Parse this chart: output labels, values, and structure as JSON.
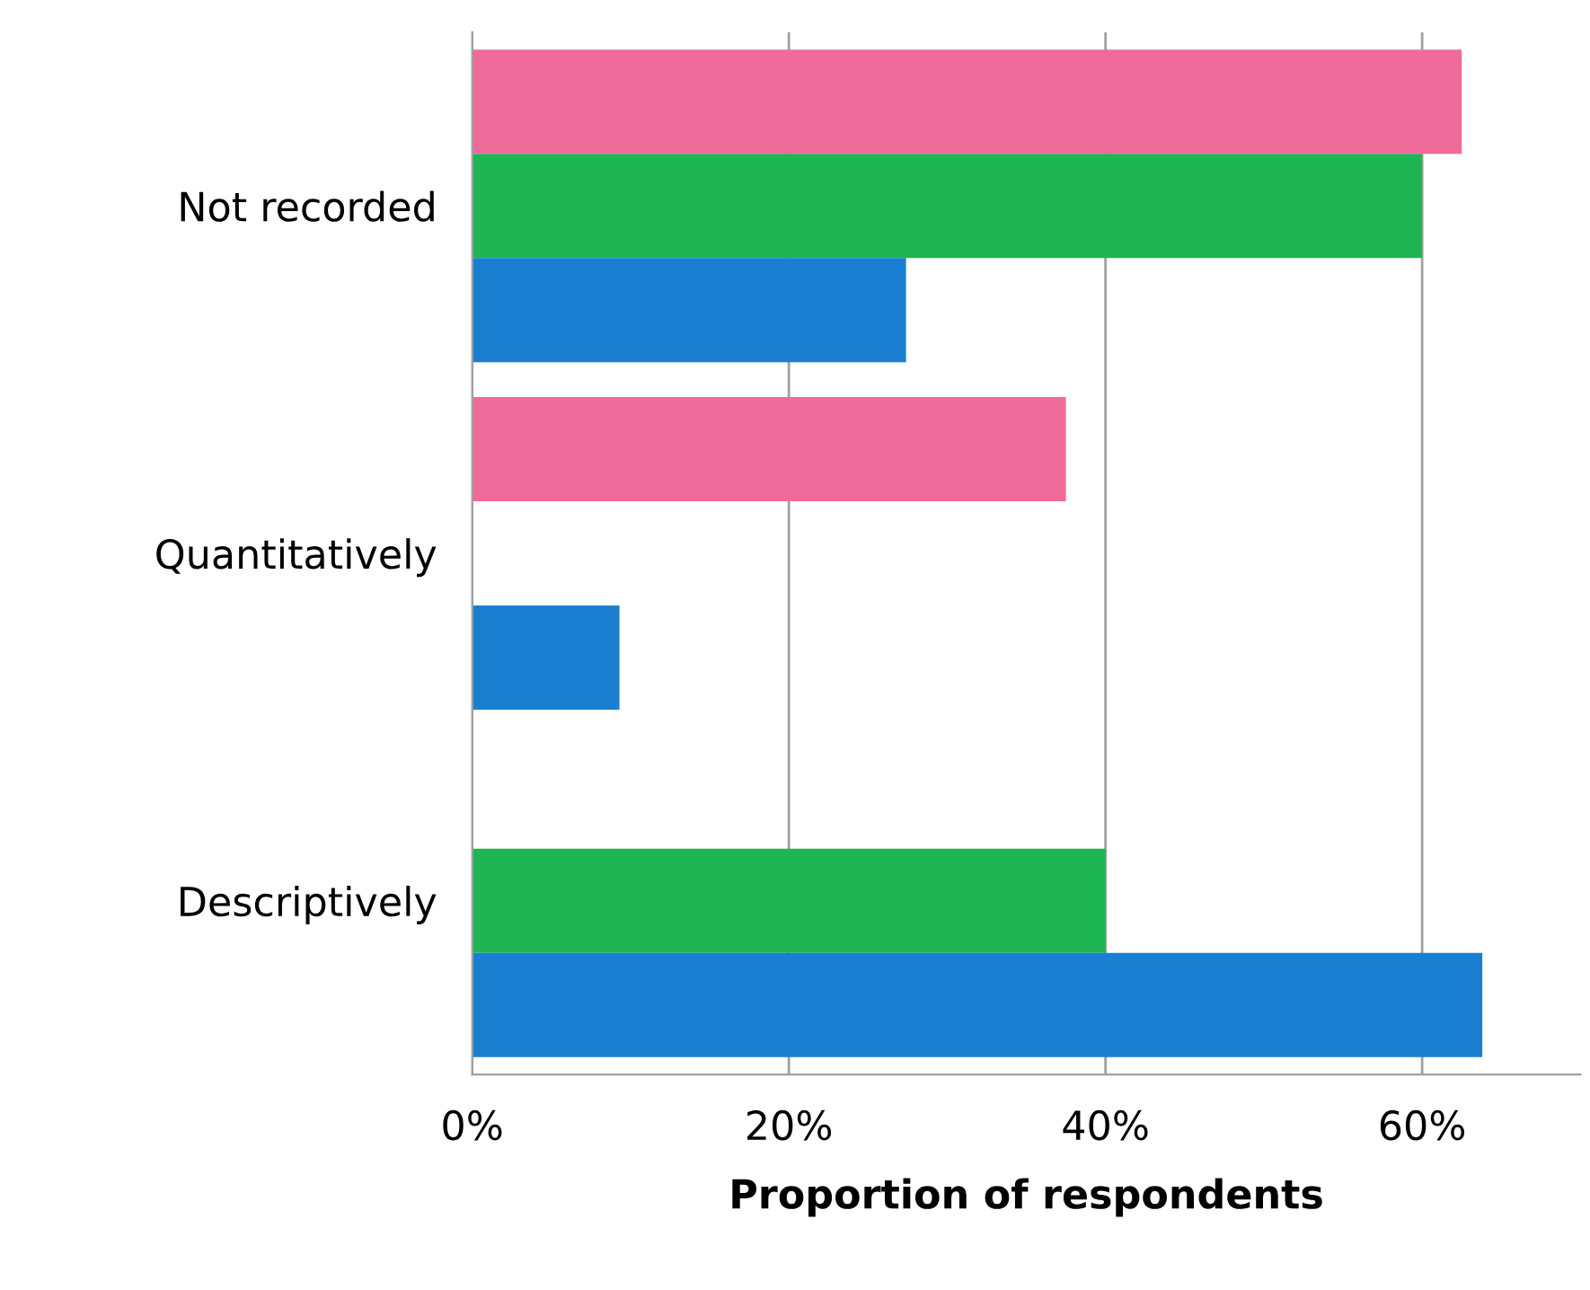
{
  "chart_data": {
    "type": "bar",
    "orientation": "horizontal",
    "xlabel": "Proportion of respondents",
    "categories": [
      "Not recorded",
      "Quantitatively",
      "Descriptively"
    ],
    "series": [
      {
        "color": "#ee6b9a",
        "values": [
          62.5,
          37.5,
          null
        ]
      },
      {
        "color": "#1fb555",
        "values": [
          60,
          null,
          40
        ]
      },
      {
        "color": "#1a7fd0",
        "values": [
          27.4,
          9.3,
          63.8
        ]
      }
    ],
    "xlim": [
      0,
      70
    ],
    "xticks": [
      {
        "value": 0,
        "label": "0%"
      },
      {
        "value": 20,
        "label": "20%"
      },
      {
        "value": 40,
        "label": "40%"
      },
      {
        "value": 60,
        "label": "60%"
      }
    ],
    "grid": "x",
    "legend": false
  }
}
